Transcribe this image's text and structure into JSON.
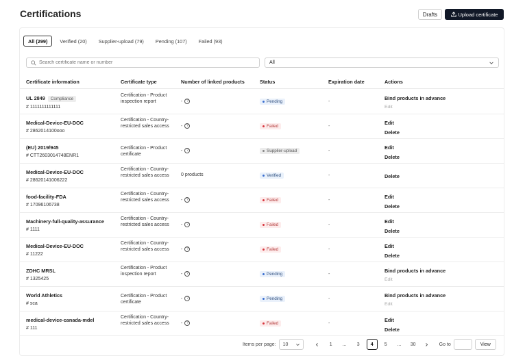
{
  "header": {
    "title": "Certifications",
    "drafts_label": "Drafts",
    "upload_label": "Upload certificate"
  },
  "tabs": [
    {
      "label": "All (299)",
      "active": true
    },
    {
      "label": "Verified (20)",
      "active": false
    },
    {
      "label": "Supplier-upload (79)",
      "active": false
    },
    {
      "label": "Pending (107)",
      "active": false
    },
    {
      "label": "Failed (93)",
      "active": false
    }
  ],
  "search": {
    "placeholder": "Search certificate name or number"
  },
  "filter": {
    "selected": "All"
  },
  "columns": {
    "info": "Certificate information",
    "type": "Certificate type",
    "linked": "Number of linked products",
    "status": "Status",
    "expiration": "Expiration date",
    "actions": "Actions"
  },
  "rows": [
    {
      "name": "UL 2849",
      "tag": "Compliance",
      "id": "# 1111111111111",
      "type": "Certification - Product inspection report",
      "linked": "-",
      "status": "Pending",
      "status_kind": "pending",
      "expiration": "-",
      "action1": "Bind products in advance",
      "action2": "Edit",
      "action2_muted": true
    },
    {
      "name": "Medical-Device-EU-DOC",
      "tag": "",
      "id": "# 2862014100ooo",
      "type": "Certification - Country-restricted sales access",
      "linked": "-",
      "status": "Failed",
      "status_kind": "failed",
      "expiration": "-",
      "action1": "Edit",
      "action2": "Delete",
      "action2_muted": false
    },
    {
      "name": "(EU) 2019/945",
      "tag": "",
      "id": "# CTT2603014748ENR1",
      "type": "Certification - Product certificate",
      "linked": "-",
      "status": "Supplier-upload",
      "status_kind": "supplier",
      "expiration": "-",
      "action1": "Edit",
      "action2": "Delete",
      "action2_muted": false
    },
    {
      "name": "Medical-Device-EU-DOC",
      "tag": "",
      "id": "# 28620141006222",
      "type": "Certification - Country-restricted sales access",
      "linked": "0 products",
      "status": "Verified",
      "status_kind": "verified",
      "expiration": "-",
      "action1": "Delete",
      "action2": "",
      "action2_muted": false
    },
    {
      "name": "food-facility-FDA",
      "tag": "",
      "id": "# 17096106738",
      "type": "Certification - Country-restricted sales access",
      "linked": "-",
      "status": "Failed",
      "status_kind": "failed",
      "expiration": "-",
      "action1": "Edit",
      "action2": "Delete",
      "action2_muted": false
    },
    {
      "name": "Machinery-full-quality-assurance",
      "tag": "",
      "id": "# 1111",
      "type": "Certification - Country-restricted sales access",
      "linked": "-",
      "status": "Failed",
      "status_kind": "failed",
      "expiration": "-",
      "action1": "Edit",
      "action2": "Delete",
      "action2_muted": false
    },
    {
      "name": "Medical-Device-EU-DOC",
      "tag": "",
      "id": "# 11222",
      "type": "Certification - Country-restricted sales access",
      "linked": "-",
      "status": "Failed",
      "status_kind": "failed",
      "expiration": "-",
      "action1": "Edit",
      "action2": "Delete",
      "action2_muted": false
    },
    {
      "name": "ZDHC MRSL",
      "tag": "",
      "id": "# 1325425",
      "type": "Certification - Product inspection report",
      "linked": "-",
      "status": "Pending",
      "status_kind": "pending",
      "expiration": "-",
      "action1": "Bind products in advance",
      "action2": "Edit",
      "action2_muted": true
    },
    {
      "name": "World Athletics",
      "tag": "",
      "id": "# sca",
      "type": "Certification - Product certificate",
      "linked": "-",
      "status": "Pending",
      "status_kind": "pending",
      "expiration": "-",
      "action1": "Bind products in advance",
      "action2": "Edit",
      "action2_muted": true
    },
    {
      "name": "medical-device-canada-mdel",
      "tag": "",
      "id": "# 111",
      "type": "Certification - Country-restricted sales access",
      "linked": "-",
      "status": "Failed",
      "status_kind": "failed",
      "expiration": "-",
      "action1": "Edit",
      "action2": "Delete",
      "action2_muted": false
    }
  ],
  "pagination": {
    "items_per_page_label": "Items per page:",
    "page_size": "10",
    "pages": [
      "1",
      "...",
      "3",
      "4",
      "5",
      "...",
      "30"
    ],
    "current": "4",
    "goto_label": "Go to",
    "view_label": "View"
  }
}
